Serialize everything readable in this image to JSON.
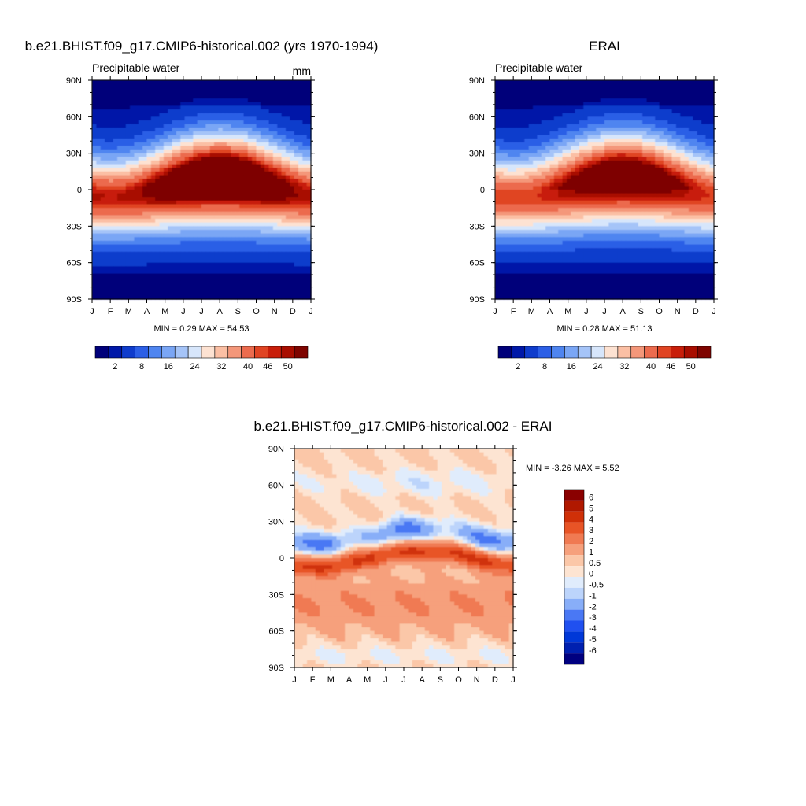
{
  "colors": {
    "model_palette": [
      "#00007a",
      "#0018a8",
      "#0f3ccc",
      "#2c5fe6",
      "#4f85f0",
      "#7aa6f5",
      "#a5c4f8",
      "#d7e6fb",
      "#fde2d2",
      "#fbbfa4",
      "#f4977a",
      "#ec6b4e",
      "#e04423",
      "#c81e0a",
      "#a80d00",
      "#7e0400"
    ],
    "diff_palette": [
      "#000080",
      "#0020b0",
      "#0038d8",
      "#2050f0",
      "#4a78f4",
      "#88aef8",
      "#bcd4fb",
      "#e0ecfc",
      "#fde4d2",
      "#fbc7a8",
      "#f6a07c",
      "#f07a52",
      "#e85426",
      "#d03008",
      "#b01800",
      "#8a0000"
    ]
  },
  "panels": [
    {
      "title": "b.e21.BHIST.f09_g17.CMIP6-historical.002 (yrs 1970-1994)",
      "subtitle_left": "Precipitable water",
      "subtitle_right": "mm",
      "stats": "MIN =   0.29 MAX =  54.53"
    },
    {
      "title": "ERAI",
      "subtitle_left": "Precipitable water",
      "subtitle_right": "",
      "stats": "MIN =   0.28 MAX =  51.13"
    },
    {
      "title": "b.e21.BHIST.f09_g17.CMIP6-historical.002 - ERAI",
      "subtitle_left": "",
      "subtitle_right": "",
      "stats": "MIN =  -3.26 MAX =   5.52"
    }
  ],
  "chart_data": [
    {
      "type": "heatmap",
      "title": "b.e21.BHIST.f09_g17.CMIP6-historical.002 (yrs 1970-1994)",
      "variable": "Precipitable water",
      "units": "mm",
      "x": [
        "J",
        "F",
        "M",
        "A",
        "M",
        "J",
        "J",
        "A",
        "S",
        "O",
        "N",
        "D",
        "J"
      ],
      "y_ticks": [
        "90N",
        "60N",
        "30N",
        "0",
        "30S",
        "60S",
        "90S"
      ],
      "y_range": [
        -90,
        90
      ],
      "min": 0.29,
      "max": 54.53,
      "colorbar_labels": [
        "2",
        "8",
        "16",
        "24",
        "32",
        "40",
        "46",
        "50"
      ],
      "levels": [
        2,
        4,
        8,
        12,
        16,
        20,
        24,
        28,
        32,
        36,
        40,
        44,
        46,
        48,
        50
      ]
    },
    {
      "type": "heatmap",
      "title": "ERAI",
      "variable": "Precipitable water",
      "units": "",
      "x": [
        "J",
        "F",
        "M",
        "A",
        "M",
        "J",
        "J",
        "A",
        "S",
        "O",
        "N",
        "D",
        "J"
      ],
      "y_ticks": [
        "90N",
        "60N",
        "30N",
        "0",
        "30S",
        "60S",
        "90S"
      ],
      "y_range": [
        -90,
        90
      ],
      "min": 0.28,
      "max": 51.13,
      "colorbar_labels": [
        "2",
        "8",
        "16",
        "24",
        "32",
        "40",
        "46",
        "50"
      ],
      "levels": [
        2,
        4,
        8,
        12,
        16,
        20,
        24,
        28,
        32,
        36,
        40,
        44,
        46,
        48,
        50
      ]
    },
    {
      "type": "heatmap",
      "title": "b.e21.BHIST.f09_g17.CMIP6-historical.002 - ERAI",
      "x": [
        "J",
        "F",
        "M",
        "A",
        "M",
        "J",
        "J",
        "A",
        "S",
        "O",
        "N",
        "D",
        "J"
      ],
      "y_ticks": [
        "90N",
        "60N",
        "30N",
        "0",
        "30S",
        "60S",
        "90S"
      ],
      "y_range": [
        -90,
        90
      ],
      "min": -3.26,
      "max": 5.52,
      "colorbar_labels": [
        "6",
        "5",
        "4",
        "3",
        "2",
        "1",
        "0.5",
        "0",
        "-0.5",
        "-1",
        "-2",
        "-3",
        "-4",
        "-5",
        "-6"
      ],
      "levels": [
        -6,
        -5,
        -4,
        -3,
        -2,
        -1,
        -0.5,
        0,
        0.5,
        1,
        2,
        3,
        4,
        5,
        6
      ]
    }
  ]
}
